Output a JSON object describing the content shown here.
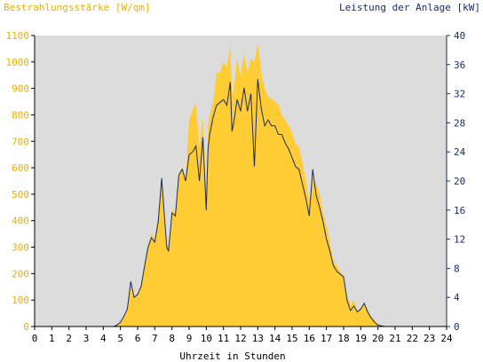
{
  "chart_data": {
    "type": "area",
    "left_title": "Bestrahlungsstärke [W/qm]",
    "right_title": "Leistung der Anlage [kW]",
    "xlabel": "Uhrzeit in Stunden",
    "x_ticks": [
      "0",
      "1",
      "2",
      "3",
      "4",
      "5",
      "6",
      "7",
      "8",
      "9",
      "10",
      "11",
      "12",
      "13",
      "14",
      "15",
      "16",
      "17",
      "18",
      "19",
      "20",
      "21",
      "22",
      "23",
      "24"
    ],
    "y_left_ticks": [
      "0",
      "100",
      "200",
      "300",
      "400",
      "500",
      "600",
      "700",
      "800",
      "900",
      "1000",
      "1100"
    ],
    "y_right_ticks": [
      "0",
      "4",
      "8",
      "12",
      "16",
      "20",
      "24",
      "28",
      "32",
      "36",
      "40"
    ],
    "xlim": [
      0,
      24
    ],
    "ylim_left": [
      0,
      1100
    ],
    "ylim_right": [
      0,
      40
    ],
    "colors": {
      "plot_bg": "#dcdcdc",
      "irradiance_fill": "#ffcc33",
      "power_line": "#1a2a66",
      "left_text": "#e8b000",
      "right_text": "#1a2a66",
      "axis": "#000000"
    },
    "series": [
      {
        "x": [
          4.6,
          4.8,
          5.0,
          5.2,
          5.4,
          5.6,
          5.8,
          6.0,
          6.2,
          6.4,
          6.6,
          6.8,
          7.0,
          7.2,
          7.4,
          7.6,
          7.7,
          7.8,
          8.0,
          8.2,
          8.4,
          8.6,
          8.8,
          9.0,
          9.2,
          9.4,
          9.6,
          9.8,
          10.0,
          10.1,
          10.2,
          10.4,
          10.6,
          10.8,
          11.0,
          11.2,
          11.4,
          11.5,
          11.6,
          11.8,
          12.0,
          12.2,
          12.4,
          12.6,
          12.8,
          13.0,
          13.2,
          13.4,
          13.6,
          13.8,
          14.0,
          14.2,
          14.4,
          14.6,
          14.8,
          15.0,
          15.2,
          15.4,
          15.6,
          15.8,
          16.0,
          16.2,
          16.4,
          16.6,
          16.8,
          17.0,
          17.2,
          17.4,
          17.6,
          17.8,
          18.0,
          18.2,
          18.4,
          18.6,
          18.8,
          19.0,
          19.2,
          19.4,
          19.6,
          19.8,
          20.0,
          20.2,
          20.4
        ],
        "values": [
          0,
          5,
          15,
          35,
          60,
          170,
          110,
          130,
          160,
          240,
          310,
          350,
          330,
          420,
          540,
          400,
          310,
          300,
          440,
          430,
          580,
          600,
          560,
          780,
          820,
          840,
          680,
          790,
          500,
          760,
          800,
          850,
          960,
          960,
          1000,
          980,
          1060,
          870,
          900,
          1010,
          950,
          1030,
          960,
          1010,
          1000,
          1070,
          960,
          900,
          870,
          860,
          850,
          840,
          800,
          780,
          760,
          730,
          690,
          680,
          620,
          550,
          470,
          560,
          540,
          500,
          430,
          380,
          320,
          250,
          230,
          210,
          190,
          120,
          80,
          100,
          60,
          70,
          90,
          60,
          40,
          25,
          10,
          3,
          0
        ]
      },
      {
        "x": [
          4.6,
          4.8,
          5.0,
          5.2,
          5.4,
          5.6,
          5.8,
          6.0,
          6.2,
          6.4,
          6.6,
          6.8,
          7.0,
          7.2,
          7.4,
          7.6,
          7.7,
          7.8,
          8.0,
          8.2,
          8.4,
          8.6,
          8.8,
          9.0,
          9.2,
          9.4,
          9.6,
          9.8,
          10.0,
          10.1,
          10.2,
          10.4,
          10.6,
          10.8,
          11.0,
          11.2,
          11.4,
          11.5,
          11.6,
          11.8,
          12.0,
          12.2,
          12.4,
          12.6,
          12.8,
          13.0,
          13.2,
          13.4,
          13.6,
          13.8,
          14.0,
          14.2,
          14.4,
          14.6,
          14.8,
          15.0,
          15.2,
          15.4,
          15.6,
          15.8,
          16.0,
          16.2,
          16.4,
          16.6,
          16.8,
          17.0,
          17.2,
          17.4,
          17.6,
          17.8,
          18.0,
          18.2,
          18.4,
          18.6,
          18.8,
          19.0,
          19.2,
          19.4,
          19.6,
          19.8,
          20.0,
          20.2,
          20.4
        ],
        "values": [
          0,
          0.2,
          0.6,
          1.4,
          2.4,
          6.2,
          4.0,
          4.4,
          5.5,
          8.2,
          10.8,
          12.2,
          11.6,
          14.4,
          20.4,
          14.0,
          10.8,
          10.4,
          15.6,
          15.2,
          20.8,
          21.6,
          20.0,
          23.6,
          24.0,
          24.8,
          20.0,
          26.0,
          16.0,
          24.4,
          26.4,
          28.8,
          30.4,
          30.8,
          31.2,
          30.4,
          33.6,
          26.8,
          28.0,
          31.2,
          29.6,
          32.8,
          29.6,
          32.0,
          22.0,
          34.0,
          30.0,
          27.6,
          28.4,
          27.6,
          27.6,
          26.4,
          26.4,
          25.2,
          24.4,
          23.2,
          22.0,
          21.6,
          19.6,
          17.6,
          15.2,
          21.6,
          18.0,
          16.4,
          14.4,
          12.0,
          10.4,
          8.4,
          7.6,
          7.2,
          6.8,
          3.6,
          2.2,
          2.8,
          2.0,
          2.4,
          3.2,
          2.0,
          1.2,
          0.6,
          0.2,
          0.1,
          0
        ]
      }
    ]
  }
}
